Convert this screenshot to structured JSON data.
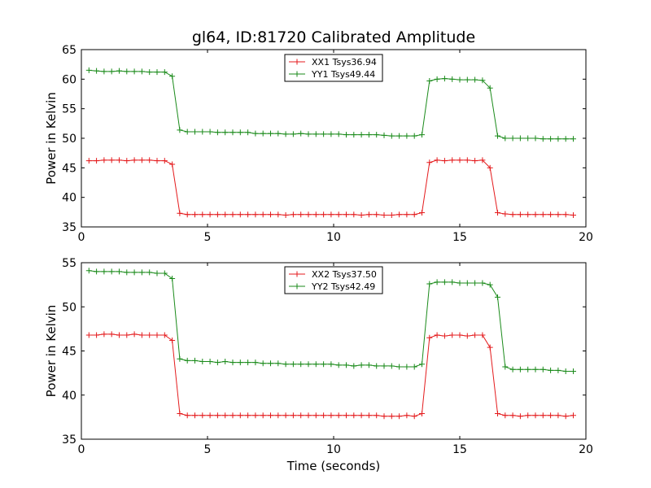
{
  "title": "gl64, ID:81720 Calibrated Amplitude",
  "chart_data": [
    {
      "type": "line",
      "ylabel": "Power in Kelvin",
      "xlabel": "",
      "xlim": [
        0,
        20
      ],
      "ylim": [
        35,
        65
      ],
      "xticks": [
        0,
        5,
        10,
        15,
        20
      ],
      "yticks": [
        35,
        40,
        45,
        50,
        55,
        60,
        65
      ],
      "legend_position": "upper-center",
      "grid": false,
      "series": [
        {
          "name": "XX1 Tsys36.94",
          "color": "#e41a1c",
          "x": [
            0.3,
            0.6,
            0.9,
            1.2,
            1.5,
            1.8,
            2.1,
            2.4,
            2.7,
            3.0,
            3.3,
            3.6,
            3.9,
            4.2,
            4.5,
            4.8,
            5.1,
            5.4,
            5.7,
            6.0,
            6.3,
            6.6,
            6.9,
            7.2,
            7.5,
            7.8,
            8.1,
            8.4,
            8.7,
            9.0,
            9.3,
            9.6,
            9.9,
            10.2,
            10.5,
            10.8,
            11.1,
            11.4,
            11.7,
            12.0,
            12.3,
            12.6,
            12.9,
            13.2,
            13.5,
            13.8,
            14.1,
            14.4,
            14.7,
            15.0,
            15.3,
            15.6,
            15.9,
            16.2,
            16.5,
            16.8,
            17.1,
            17.4,
            17.7,
            18.0,
            18.3,
            18.6,
            18.9,
            19.2,
            19.5
          ],
          "values": [
            46.2,
            46.2,
            46.3,
            46.3,
            46.3,
            46.2,
            46.3,
            46.3,
            46.3,
            46.2,
            46.2,
            45.6,
            37.3,
            37.1,
            37.1,
            37.1,
            37.1,
            37.1,
            37.1,
            37.1,
            37.1,
            37.1,
            37.1,
            37.1,
            37.1,
            37.1,
            37.0,
            37.1,
            37.1,
            37.1,
            37.1,
            37.1,
            37.1,
            37.1,
            37.1,
            37.1,
            37.0,
            37.1,
            37.1,
            37.0,
            37.0,
            37.1,
            37.1,
            37.1,
            37.4,
            45.9,
            46.3,
            46.2,
            46.3,
            46.3,
            46.3,
            46.2,
            46.3,
            45.0,
            37.4,
            37.2,
            37.1,
            37.1,
            37.1,
            37.1,
            37.1,
            37.1,
            37.1,
            37.1,
            37.0
          ]
        },
        {
          "name": "YY1 Tsys49.44",
          "color": "#1a8a1a",
          "x": [
            0.3,
            0.6,
            0.9,
            1.2,
            1.5,
            1.8,
            2.1,
            2.4,
            2.7,
            3.0,
            3.3,
            3.6,
            3.9,
            4.2,
            4.5,
            4.8,
            5.1,
            5.4,
            5.7,
            6.0,
            6.3,
            6.6,
            6.9,
            7.2,
            7.5,
            7.8,
            8.1,
            8.4,
            8.7,
            9.0,
            9.3,
            9.6,
            9.9,
            10.2,
            10.5,
            10.8,
            11.1,
            11.4,
            11.7,
            12.0,
            12.3,
            12.6,
            12.9,
            13.2,
            13.5,
            13.8,
            14.1,
            14.4,
            14.7,
            15.0,
            15.3,
            15.6,
            15.9,
            16.2,
            16.5,
            16.8,
            17.1,
            17.4,
            17.7,
            18.0,
            18.3,
            18.6,
            18.9,
            19.2,
            19.5
          ],
          "values": [
            61.5,
            61.4,
            61.3,
            61.3,
            61.4,
            61.3,
            61.3,
            61.3,
            61.2,
            61.2,
            61.2,
            60.5,
            51.4,
            51.1,
            51.1,
            51.1,
            51.1,
            51.0,
            51.0,
            51.0,
            51.0,
            51.0,
            50.8,
            50.8,
            50.8,
            50.8,
            50.7,
            50.7,
            50.8,
            50.7,
            50.7,
            50.7,
            50.7,
            50.7,
            50.6,
            50.6,
            50.6,
            50.6,
            50.6,
            50.5,
            50.4,
            50.4,
            50.4,
            50.4,
            50.6,
            59.7,
            60.0,
            60.1,
            60.0,
            59.9,
            59.9,
            59.9,
            59.8,
            58.5,
            50.4,
            50.0,
            50.0,
            50.0,
            50.0,
            50.0,
            49.9,
            49.9,
            49.9,
            49.9,
            49.9
          ]
        }
      ]
    },
    {
      "type": "line",
      "ylabel": "Power in Kelvin",
      "xlabel": "Time (seconds)",
      "xlim": [
        0,
        20
      ],
      "ylim": [
        35,
        55
      ],
      "xticks": [
        0,
        5,
        10,
        15,
        20
      ],
      "yticks": [
        35,
        40,
        45,
        50,
        55
      ],
      "legend_position": "upper-center",
      "grid": false,
      "series": [
        {
          "name": "XX2 Tsys37.50",
          "color": "#e41a1c",
          "x": [
            0.3,
            0.6,
            0.9,
            1.2,
            1.5,
            1.8,
            2.1,
            2.4,
            2.7,
            3.0,
            3.3,
            3.6,
            3.9,
            4.2,
            4.5,
            4.8,
            5.1,
            5.4,
            5.7,
            6.0,
            6.3,
            6.6,
            6.9,
            7.2,
            7.5,
            7.8,
            8.1,
            8.4,
            8.7,
            9.0,
            9.3,
            9.6,
            9.9,
            10.2,
            10.5,
            10.8,
            11.1,
            11.4,
            11.7,
            12.0,
            12.3,
            12.6,
            12.9,
            13.2,
            13.5,
            13.8,
            14.1,
            14.4,
            14.7,
            15.0,
            15.3,
            15.6,
            15.9,
            16.2,
            16.5,
            16.8,
            17.1,
            17.4,
            17.7,
            18.0,
            18.3,
            18.6,
            18.9,
            19.2,
            19.5
          ],
          "values": [
            46.8,
            46.8,
            46.9,
            46.9,
            46.8,
            46.8,
            46.9,
            46.8,
            46.8,
            46.8,
            46.8,
            46.2,
            37.9,
            37.7,
            37.7,
            37.7,
            37.7,
            37.7,
            37.7,
            37.7,
            37.7,
            37.7,
            37.7,
            37.7,
            37.7,
            37.7,
            37.7,
            37.7,
            37.7,
            37.7,
            37.7,
            37.7,
            37.7,
            37.7,
            37.7,
            37.7,
            37.7,
            37.7,
            37.7,
            37.6,
            37.6,
            37.6,
            37.7,
            37.6,
            37.9,
            46.5,
            46.8,
            46.7,
            46.8,
            46.8,
            46.7,
            46.8,
            46.8,
            45.4,
            37.9,
            37.7,
            37.7,
            37.6,
            37.7,
            37.7,
            37.7,
            37.7,
            37.7,
            37.6,
            37.7
          ]
        },
        {
          "name": "YY2 Tsys42.49",
          "color": "#1a8a1a",
          "x": [
            0.3,
            0.6,
            0.9,
            1.2,
            1.5,
            1.8,
            2.1,
            2.4,
            2.7,
            3.0,
            3.3,
            3.6,
            3.9,
            4.2,
            4.5,
            4.8,
            5.1,
            5.4,
            5.7,
            6.0,
            6.3,
            6.6,
            6.9,
            7.2,
            7.5,
            7.8,
            8.1,
            8.4,
            8.7,
            9.0,
            9.3,
            9.6,
            9.9,
            10.2,
            10.5,
            10.8,
            11.1,
            11.4,
            11.7,
            12.0,
            12.3,
            12.6,
            12.9,
            13.2,
            13.5,
            13.8,
            14.1,
            14.4,
            14.7,
            15.0,
            15.3,
            15.6,
            15.9,
            16.2,
            16.5,
            16.8,
            17.1,
            17.4,
            17.7,
            18.0,
            18.3,
            18.6,
            18.9,
            19.2,
            19.5
          ],
          "values": [
            54.1,
            54.0,
            54.0,
            54.0,
            54.0,
            53.9,
            53.9,
            53.9,
            53.9,
            53.8,
            53.8,
            53.2,
            44.1,
            43.9,
            43.9,
            43.8,
            43.8,
            43.7,
            43.8,
            43.7,
            43.7,
            43.7,
            43.7,
            43.6,
            43.6,
            43.6,
            43.5,
            43.5,
            43.5,
            43.5,
            43.5,
            43.5,
            43.5,
            43.4,
            43.4,
            43.3,
            43.4,
            43.4,
            43.3,
            43.3,
            43.3,
            43.2,
            43.2,
            43.2,
            43.5,
            52.6,
            52.8,
            52.8,
            52.8,
            52.7,
            52.7,
            52.7,
            52.7,
            52.5,
            51.1,
            43.2,
            42.9,
            42.9,
            42.9,
            42.9,
            42.9,
            42.8,
            42.8,
            42.7,
            42.7
          ]
        }
      ]
    }
  ]
}
